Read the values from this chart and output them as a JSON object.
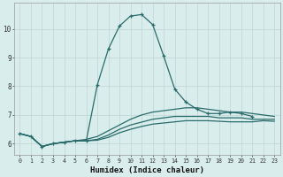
{
  "xlabel": "Humidex (Indice chaleur)",
  "ylabel": "",
  "xlim": [
    -0.5,
    23.5
  ],
  "ylim": [
    5.6,
    10.9
  ],
  "background_color": "#d8edec",
  "grid_color": "#c2d9d8",
  "line_color": "#2a6b6b",
  "xticks": [
    0,
    1,
    2,
    3,
    4,
    5,
    6,
    7,
    8,
    9,
    10,
    11,
    12,
    13,
    14,
    15,
    16,
    17,
    18,
    19,
    20,
    21,
    22,
    23
  ],
  "yticks": [
    6,
    7,
    8,
    9,
    10
  ],
  "lines": [
    {
      "x": [
        0,
        1,
        2,
        3,
        4,
        5,
        6,
        7,
        8,
        9,
        10,
        11,
        12,
        13,
        14,
        15,
        16,
        17,
        18,
        19,
        20,
        21
      ],
      "y": [
        6.35,
        6.25,
        5.9,
        6.0,
        6.05,
        6.1,
        6.1,
        8.05,
        9.3,
        10.1,
        10.45,
        10.5,
        10.15,
        9.05,
        7.9,
        7.45,
        7.2,
        7.05,
        7.05,
        7.1,
        7.05,
        6.95
      ],
      "marker": true
    },
    {
      "x": [
        0,
        1,
        2,
        3,
        4,
        5,
        6,
        7,
        8,
        9,
        10,
        11,
        12,
        13,
        14,
        15,
        16,
        17,
        18,
        19,
        20,
        21,
        22,
        23
      ],
      "y": [
        6.35,
        6.25,
        5.9,
        6.0,
        6.05,
        6.1,
        6.15,
        6.25,
        6.45,
        6.65,
        6.85,
        7.0,
        7.1,
        7.15,
        7.2,
        7.25,
        7.25,
        7.2,
        7.15,
        7.1,
        7.1,
        7.05,
        7.0,
        6.95
      ],
      "marker": false
    },
    {
      "x": [
        0,
        1,
        2,
        3,
        4,
        5,
        6,
        7,
        8,
        9,
        10,
        11,
        12,
        13,
        14,
        15,
        16,
        17,
        18,
        19,
        20,
        21,
        22,
        23
      ],
      "y": [
        6.35,
        6.25,
        5.9,
        6.0,
        6.05,
        6.1,
        6.1,
        6.15,
        6.3,
        6.5,
        6.65,
        6.75,
        6.85,
        6.9,
        6.95,
        6.95,
        6.95,
        6.95,
        6.9,
        6.9,
        6.9,
        6.85,
        6.85,
        6.85
      ],
      "marker": false
    },
    {
      "x": [
        0,
        1,
        2,
        3,
        4,
        5,
        6,
        7,
        8,
        9,
        10,
        11,
        12,
        13,
        14,
        15,
        16,
        17,
        18,
        19,
        20,
        21,
        22,
        23
      ],
      "y": [
        6.35,
        6.25,
        5.9,
        6.0,
        6.05,
        6.1,
        6.1,
        6.12,
        6.22,
        6.38,
        6.5,
        6.6,
        6.68,
        6.72,
        6.76,
        6.8,
        6.8,
        6.8,
        6.78,
        6.76,
        6.76,
        6.76,
        6.8,
        6.78
      ],
      "marker": false
    }
  ]
}
